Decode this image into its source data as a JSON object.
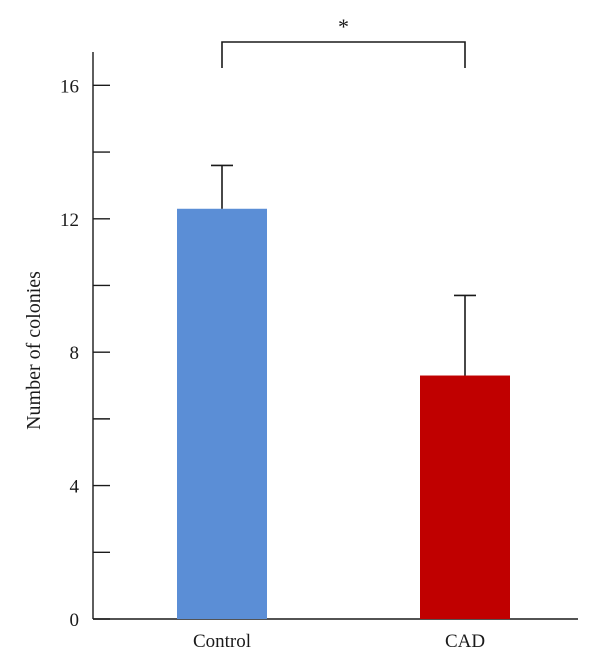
{
  "chart_data": {
    "type": "bar",
    "categories": [
      "Control",
      "CAD"
    ],
    "values": [
      12.3,
      7.3
    ],
    "errors": [
      1.3,
      2.4
    ],
    "colors": [
      "#5B8ED6",
      "#C00000"
    ],
    "ylabel": "Number of colonies",
    "xlabel": "",
    "ylim": [
      0,
      17
    ],
    "yticks_labeled": [
      0,
      4,
      8,
      12,
      16
    ],
    "yticks_minor": [
      2,
      6,
      10,
      14
    ],
    "significance": {
      "label": "*",
      "between": [
        "Control",
        "CAD"
      ]
    },
    "grid": false
  }
}
